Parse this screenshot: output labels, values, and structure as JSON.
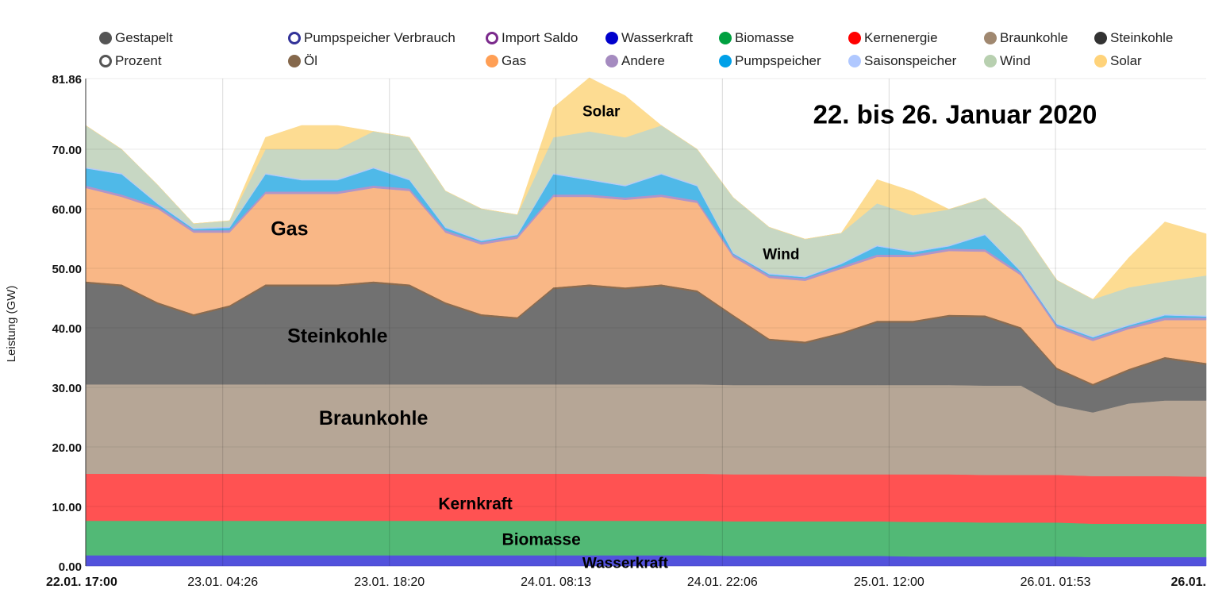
{
  "chart_data": {
    "type": "area",
    "stacked": true,
    "title": "22. bis 26. Januar 2020",
    "ylabel": "Leistung (GW)",
    "xlabel": "",
    "ylim": [
      0,
      81.86
    ],
    "y_ticks": [
      "0.00",
      "10.00",
      "20.00",
      "30.00",
      "40.00",
      "50.00",
      "60.00",
      "70.00",
      "81.86"
    ],
    "x_unit": "hours since 22.01. 17:00",
    "x_ticks": [
      {
        "hour": 0,
        "label": "22.01. 17:00"
      },
      {
        "hour": 11.43,
        "label": "23.01. 04:26"
      },
      {
        "hour": 25.33,
        "label": "23.01. 18:20"
      },
      {
        "hour": 39.22,
        "label": "24.01. 08:13"
      },
      {
        "hour": 53.1,
        "label": "24.01. 22:06"
      },
      {
        "hour": 67.0,
        "label": "25.01. 12:00"
      },
      {
        "hour": 80.88,
        "label": "26.01. 01:53"
      },
      {
        "hour": 93.45,
        "label": "26.01."
      }
    ],
    "x": [
      0,
      3,
      6,
      9,
      12,
      15,
      18,
      21,
      24,
      27,
      30,
      33,
      36,
      39,
      42,
      45,
      48,
      51,
      54,
      57,
      60,
      63,
      66,
      69,
      72,
      75,
      78,
      81,
      84,
      87,
      90,
      93.45
    ],
    "series": [
      {
        "name": "Wasserkraft",
        "color": "#5252dc",
        "values": [
          1.8,
          1.8,
          1.8,
          1.8,
          1.8,
          1.8,
          1.8,
          1.8,
          1.8,
          1.8,
          1.8,
          1.8,
          1.8,
          1.8,
          1.8,
          1.8,
          1.8,
          1.8,
          1.7,
          1.7,
          1.7,
          1.7,
          1.7,
          1.6,
          1.6,
          1.6,
          1.6,
          1.6,
          1.5,
          1.5,
          1.5,
          1.5
        ]
      },
      {
        "name": "Biomasse",
        "color": "#52b976",
        "values": [
          5.8,
          5.8,
          5.8,
          5.8,
          5.8,
          5.8,
          5.8,
          5.8,
          5.8,
          5.8,
          5.8,
          5.8,
          5.8,
          5.8,
          5.8,
          5.8,
          5.8,
          5.8,
          5.8,
          5.8,
          5.8,
          5.8,
          5.8,
          5.8,
          5.8,
          5.7,
          5.7,
          5.7,
          5.6,
          5.6,
          5.6,
          5.6
        ]
      },
      {
        "name": "Kernenergie",
        "color": "#ff5252",
        "values": [
          7.9,
          7.9,
          7.9,
          7.9,
          7.9,
          7.9,
          7.9,
          7.9,
          7.9,
          7.9,
          7.9,
          7.9,
          7.9,
          7.9,
          7.9,
          7.9,
          7.9,
          7.9,
          7.9,
          7.9,
          7.9,
          7.9,
          7.9,
          8.0,
          8.0,
          8.0,
          8.0,
          8.0,
          8.0,
          8.0,
          8.0,
          7.9
        ]
      },
      {
        "name": "Braunkohle",
        "color": "#b6a696",
        "values": [
          15,
          15,
          15,
          15,
          15,
          15,
          15,
          15,
          15,
          15,
          15,
          15,
          15,
          15,
          15,
          15,
          15,
          15,
          15,
          15,
          15,
          15,
          15,
          15,
          15,
          15,
          15,
          11.7,
          10.7,
          12.2,
          12.7,
          12.8
        ]
      },
      {
        "name": "Steinkohle",
        "color": "#717171",
        "values": [
          17,
          16.5,
          13.5,
          11.5,
          13,
          16.5,
          16.5,
          16.5,
          17,
          16.5,
          13.5,
          11.5,
          11,
          16,
          16.5,
          16,
          16.5,
          15.5,
          11.5,
          7.5,
          7,
          8.5,
          10.5,
          10.5,
          11.5,
          11.5,
          9.5,
          6,
          4.5,
          5.5,
          7,
          6
        ]
      },
      {
        "name": "Öl",
        "color": "#8b6b4f",
        "values": [
          0.3,
          0.3,
          0.3,
          0.3,
          0.3,
          0.3,
          0.3,
          0.3,
          0.3,
          0.3,
          0.3,
          0.3,
          0.3,
          0.3,
          0.3,
          0.3,
          0.3,
          0.3,
          0.3,
          0.3,
          0.3,
          0.3,
          0.3,
          0.3,
          0.3,
          0.3,
          0.3,
          0.3,
          0.3,
          0.3,
          0.3,
          0.3
        ]
      },
      {
        "name": "Gas",
        "color": "#f9b786",
        "values": [
          15.7,
          14.7,
          15.7,
          13.7,
          12.2,
          15.2,
          15.2,
          15.2,
          15.7,
          15.7,
          11.7,
          11.7,
          13.2,
          15.2,
          14.7,
          14.7,
          14.7,
          14.7,
          9.7,
          10.2,
          10.2,
          10.7,
          10.7,
          10.7,
          10.7,
          10.7,
          8.7,
          6.7,
          7.2,
          6.7,
          6.2,
          7.2
        ]
      },
      {
        "name": "Andere",
        "color": "#b095c8",
        "values": [
          0.4,
          0.4,
          0.4,
          0.4,
          0.4,
          0.4,
          0.4,
          0.4,
          0.4,
          0.4,
          0.4,
          0.4,
          0.4,
          0.4,
          0.4,
          0.4,
          0.4,
          0.4,
          0.4,
          0.4,
          0.4,
          0.4,
          0.4,
          0.4,
          0.4,
          0.4,
          0.4,
          0.4,
          0.4,
          0.4,
          0.4,
          0.4
        ]
      },
      {
        "name": "Pumpspeicher",
        "color": "#4fb9e8",
        "values": [
          2.9,
          3.4,
          0.4,
          0.2,
          0.4,
          2.9,
          1.9,
          1.9,
          2.9,
          1.4,
          0.4,
          0.2,
          0.2,
          3.4,
          2.4,
          1.9,
          3.4,
          2.4,
          0.2,
          0.2,
          0.2,
          0.4,
          1.4,
          0.4,
          0.4,
          2.4,
          0.2,
          0.2,
          0.2,
          0.2,
          0.4,
          0.2
        ]
      },
      {
        "name": "Saisonspeicher",
        "color": "#b7cbf5",
        "values": [
          0.2,
          0.2,
          0.2,
          0.2,
          0.2,
          0.2,
          0.2,
          0.2,
          0.2,
          0.2,
          0.2,
          0.2,
          0.2,
          0.2,
          0.2,
          0.2,
          0.2,
          0.2,
          0.2,
          0.2,
          0.2,
          0.2,
          0.2,
          0.2,
          0.2,
          0.2,
          0.2,
          0.2,
          0.2,
          0.2,
          0.2,
          0.2
        ]
      },
      {
        "name": "Wind",
        "color": "#c7d7c3",
        "values": [
          7,
          4,
          3,
          0.7,
          1,
          4,
          5,
          5,
          6,
          7,
          6,
          5.2,
          3.2,
          6,
          8,
          8,
          8,
          6,
          9.2,
          7.7,
          6.2,
          5,
          7,
          6,
          6,
          6,
          7.2,
          7.2,
          6.2,
          6.2,
          5.5,
          6.7
        ]
      },
      {
        "name": "Solar",
        "color": "#fddc92",
        "values": [
          0,
          0,
          0,
          0,
          0,
          2,
          4,
          4,
          0,
          0,
          0,
          0,
          0,
          5,
          9,
          7,
          0,
          0,
          0,
          0,
          0,
          0,
          4,
          4,
          0,
          0,
          0,
          0,
          0,
          5,
          10,
          7
        ]
      }
    ],
    "annotations": [
      {
        "text": "Solar",
        "hour": 43,
        "value": 75.5,
        "size": 19
      },
      {
        "text": "Gas",
        "hour": 17,
        "value": 55.5,
        "size": 25
      },
      {
        "text": "Wind",
        "hour": 58,
        "value": 51.5,
        "size": 19
      },
      {
        "text": "Steinkohle",
        "hour": 21,
        "value": 37.5,
        "size": 25
      },
      {
        "text": "Braunkohle",
        "hour": 24,
        "value": 23.7,
        "size": 25
      },
      {
        "text": "Kernkraft",
        "hour": 32.5,
        "value": 9.5,
        "size": 21
      },
      {
        "text": "Biomasse",
        "hour": 38,
        "value": 3.5,
        "size": 21
      },
      {
        "text": "Wasserkraft",
        "hour": 45,
        "value": -0.3,
        "size": 19
      },
      {
        "text": "22. bis 26. Januar 2020",
        "hour": 72.5,
        "value": 74.3,
        "size": 33
      }
    ],
    "legend_placement": "top",
    "legend": [
      [
        {
          "label": "Gestapelt",
          "color": "#555555",
          "filled": true
        },
        {
          "label": "Pumpspeicher Verbrauch",
          "color": "#333399",
          "filled": false
        },
        {
          "label": "Import Saldo",
          "color": "#7b2a8c",
          "filled": false
        },
        {
          "label": "Wasserkraft",
          "color": "#0000cc",
          "filled": true
        },
        {
          "label": "Biomasse",
          "color": "#00a040",
          "filled": true
        },
        {
          "label": "Kernenergie",
          "color": "#ff0000",
          "filled": true
        },
        {
          "label": "Braunkohle",
          "color": "#a08870",
          "filled": true
        },
        {
          "label": "Steinkohle",
          "color": "#333333",
          "filled": true
        }
      ],
      [
        {
          "label": "Prozent",
          "color": "#555555",
          "filled": false
        },
        {
          "label": "Öl",
          "color": "#85684c",
          "filled": true
        },
        {
          "label": "Gas",
          "color": "#ff9f55",
          "filled": true
        },
        {
          "label": "Andere",
          "color": "#a58bc0",
          "filled": true
        },
        {
          "label": "Pumpspeicher",
          "color": "#00a0e8",
          "filled": true
        },
        {
          "label": "Saisonspeicher",
          "color": "#b0c8ff",
          "filled": true
        },
        {
          "label": "Wind",
          "color": "#b8d0b0",
          "filled": true
        },
        {
          "label": "Solar",
          "color": "#ffd37a",
          "filled": true
        }
      ]
    ]
  }
}
